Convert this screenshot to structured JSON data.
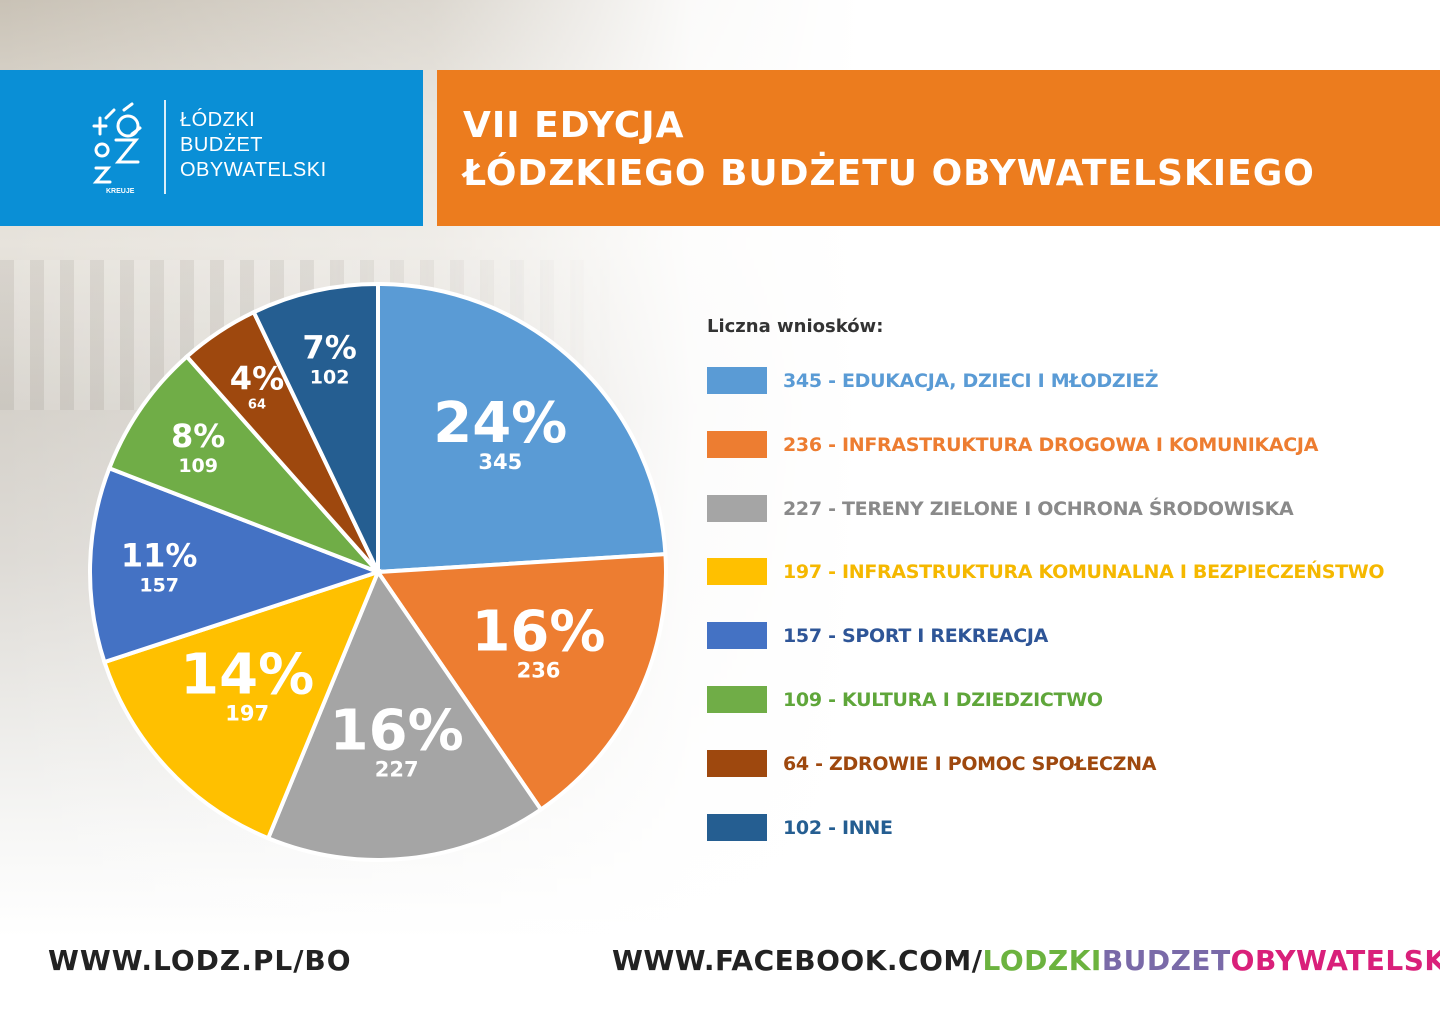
{
  "logo": {
    "line1": "ŁÓDZKI",
    "line2": "BUDŻET",
    "line3": "OBYWATELSKI",
    "mark_caption": "KREUJE"
  },
  "header": {
    "title_line1": "VII EDYCJA",
    "title_line2": "ŁÓDZKIEGO BUDŻETU OBYWATELSKIEGO"
  },
  "chart_data": {
    "type": "pie",
    "title": "",
    "legend_title": "Liczna wniosków:",
    "legend_position": "right",
    "slices": [
      {
        "percent_label": "24%",
        "value": 345,
        "value_label": "345",
        "legend_label": "345 - EDUKACJA, DZIECI I MŁODZIEŻ",
        "color": "#5a9bd5",
        "label_color": "#5a9bd5"
      },
      {
        "percent_label": "16%",
        "value": 236,
        "value_label": "236",
        "legend_label": "236 - INFRASTRUKTURA DROGOWA I KOMUNIKACJA",
        "color": "#ed7d31",
        "label_color": "#ed7d31"
      },
      {
        "percent_label": "16%",
        "value": 227,
        "value_label": "227",
        "legend_label": "227 - TERENY ZIELONE I OCHRONA ŚRODOWISKA",
        "color": "#a5a5a5",
        "label_color": "#8a8a8a"
      },
      {
        "percent_label": "14%",
        "value": 197,
        "value_label": "197",
        "legend_label": "197 - INFRASTRUKTURA KOMUNALNA I BEZPIECZEŃSTWO",
        "color": "#ffc000",
        "label_color": "#f5b800"
      },
      {
        "percent_label": "11%",
        "value": 157,
        "value_label": "157",
        "legend_label": "157 - SPORT I REKREACJA",
        "color": "#4472c4",
        "label_color": "#2e5597"
      },
      {
        "percent_label": "8%",
        "value": 109,
        "value_label": "109",
        "legend_label": "109 - KULTURA I DZIEDZICTWO",
        "color": "#70ad47",
        "label_color": "#5fa63a"
      },
      {
        "percent_label": "4%",
        "value": 64,
        "value_label": "64",
        "legend_label": "64 - ZDROWIE I POMOC SPOŁECZNA",
        "color": "#9e480e",
        "label_color": "#9e480e"
      },
      {
        "percent_label": "7%",
        "value": 102,
        "value_label": "102",
        "legend_label": "102 - INNE",
        "color": "#255e91",
        "label_color": "#255e91"
      }
    ]
  },
  "footer": {
    "left_url": "WWW.LODZ.PL/BO",
    "right_prefix": "WWW.FACEBOOK.COM/",
    "right_part1": "LODZKI",
    "right_part2": "BUDZET",
    "right_part3": "OBYWATELSKI",
    "colors": {
      "prefix": "#222222",
      "part1": "#6cb33f",
      "part2": "#7a6aa8",
      "part3": "#d9207a"
    }
  }
}
